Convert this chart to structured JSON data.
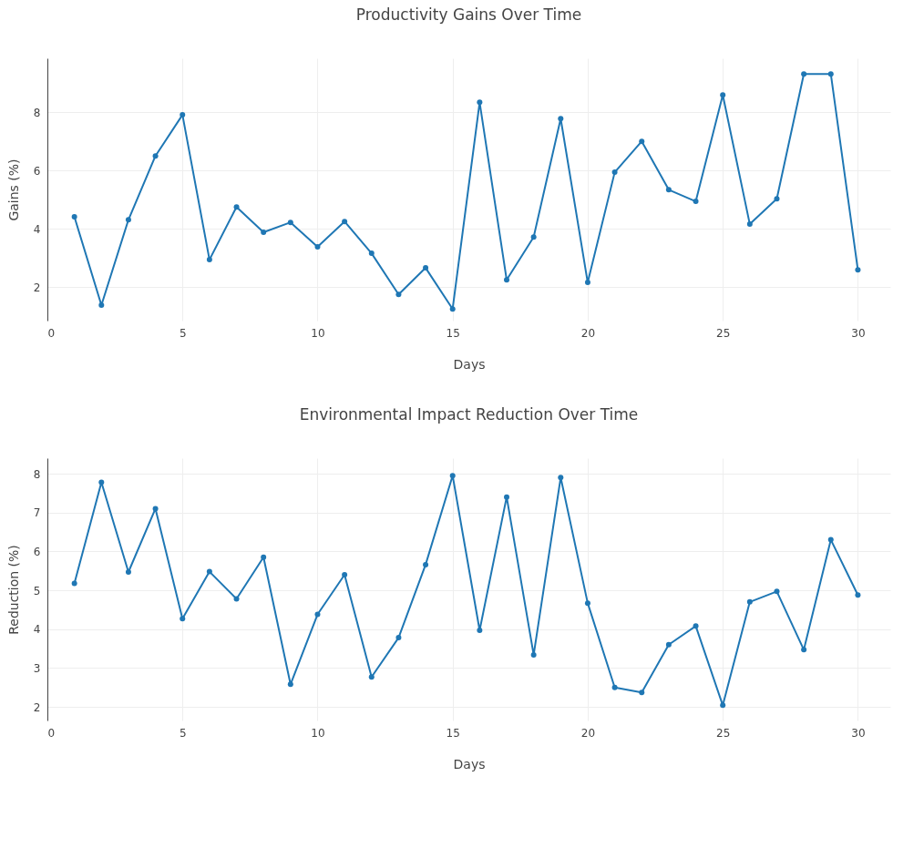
{
  "chart_data": [
    {
      "type": "line",
      "title": "Productivity Gains Over Time",
      "xlabel": "Days",
      "ylabel": "Gains (%)",
      "x": [
        1,
        2,
        3,
        4,
        5,
        6,
        7,
        8,
        9,
        10,
        11,
        12,
        13,
        14,
        15,
        16,
        17,
        18,
        19,
        20,
        21,
        22,
        23,
        24,
        25,
        26,
        27,
        28,
        29,
        30
      ],
      "series": [
        {
          "color": "#1f77b4",
          "values": [
            4.41,
            1.38,
            4.31,
            6.5,
            7.91,
            2.94,
            4.75,
            3.88,
            4.22,
            3.38,
            4.25,
            3.16,
            1.75,
            2.66,
            1.25,
            8.34,
            2.25,
            3.72,
            7.78,
            2.16,
            5.94,
            7.0,
            5.34,
            4.94,
            8.59,
            4.16,
            5.03,
            9.31,
            9.31,
            2.59
          ]
        }
      ],
      "xlim": [
        0,
        31.2
      ],
      "xticks": [
        0,
        5,
        10,
        15,
        20,
        25,
        30
      ],
      "ylim": [
        0.85,
        9.85
      ],
      "yticks": [
        2,
        4,
        6,
        8
      ],
      "grid": true,
      "marker": "circle",
      "line_style": "solid"
    },
    {
      "type": "line",
      "title": "Environmental Impact Reduction Over Time",
      "xlabel": "Days",
      "ylabel": "Reduction (%)",
      "x": [
        1,
        2,
        3,
        4,
        5,
        6,
        7,
        8,
        9,
        10,
        11,
        12,
        13,
        14,
        15,
        16,
        17,
        18,
        19,
        20,
        21,
        22,
        23,
        24,
        25,
        26,
        27,
        28,
        29,
        30
      ],
      "series": [
        {
          "color": "#1f77b4",
          "values": [
            5.18,
            7.78,
            5.47,
            7.1,
            4.27,
            5.48,
            4.78,
            5.85,
            2.58,
            4.38,
            5.4,
            2.77,
            3.78,
            5.66,
            7.95,
            3.97,
            7.4,
            3.34,
            7.9,
            4.67,
            2.5,
            2.37,
            3.6,
            4.08,
            2.04,
            4.7,
            4.97,
            3.47,
            6.3,
            4.88
          ]
        }
      ],
      "xlim": [
        0,
        31.2
      ],
      "xticks": [
        0,
        5,
        10,
        15,
        20,
        25,
        30
      ],
      "ylim": [
        1.65,
        8.4
      ],
      "yticks": [
        2,
        3,
        4,
        5,
        6,
        7,
        8
      ],
      "grid": true,
      "marker": "circle",
      "line_style": "solid"
    }
  ]
}
